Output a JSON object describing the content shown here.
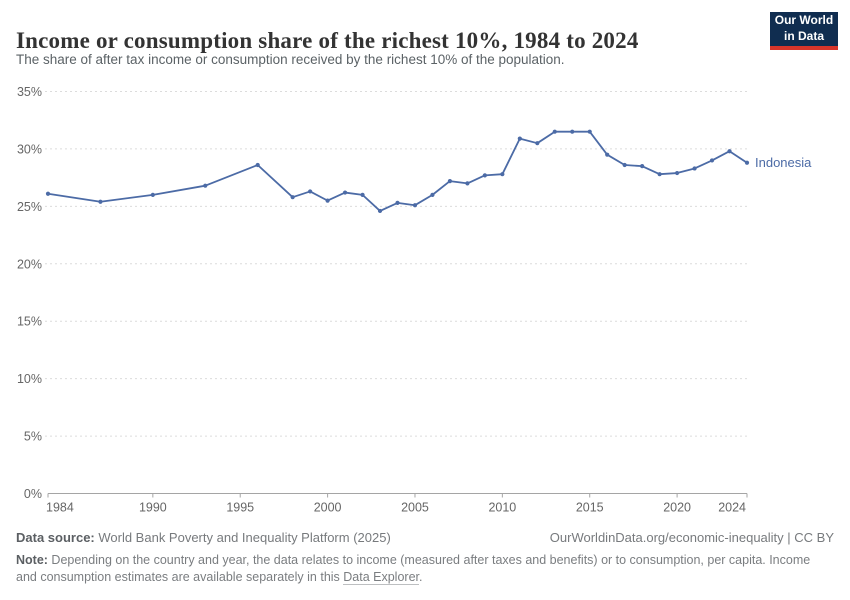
{
  "header": {
    "title": "Income or consumption share of the richest 10%, 1984 to 2024",
    "subtitle": "The share of after tax income or consumption received by the richest 10% of the population.",
    "logo": {
      "line1": "Our World",
      "line2": "in Data"
    }
  },
  "chart_data": {
    "type": "line",
    "title": "Income or consumption share of the richest 10%, 1984 to 2024",
    "xlabel": "",
    "ylabel": "",
    "xlim": [
      1984,
      2024
    ],
    "ylim": [
      0,
      35
    ],
    "grid": true,
    "y_ticks": [
      0,
      5,
      10,
      15,
      20,
      25,
      30,
      35
    ],
    "y_tick_suffix": "%",
    "x_ticks": [
      1984,
      1990,
      1995,
      2000,
      2005,
      2010,
      2015,
      2020,
      2024
    ],
    "legend_position": "end-of-line-label",
    "series": [
      {
        "name": "Indonesia",
        "color": "#4c6ba6",
        "points": [
          [
            1984,
            26.1
          ],
          [
            1987,
            25.4
          ],
          [
            1990,
            26.0
          ],
          [
            1993,
            26.8
          ],
          [
            1996,
            28.6
          ],
          [
            1998,
            25.8
          ],
          [
            1999,
            26.3
          ],
          [
            2000,
            25.5
          ],
          [
            2001,
            26.2
          ],
          [
            2002,
            26.0
          ],
          [
            2003,
            24.6
          ],
          [
            2004,
            25.3
          ],
          [
            2005,
            25.1
          ],
          [
            2006,
            26.0
          ],
          [
            2007,
            27.2
          ],
          [
            2008,
            27.0
          ],
          [
            2009,
            27.7
          ],
          [
            2010,
            27.8
          ],
          [
            2011,
            30.9
          ],
          [
            2012,
            30.5
          ],
          [
            2013,
            31.5
          ],
          [
            2014,
            31.5
          ],
          [
            2015,
            31.5
          ],
          [
            2016,
            29.5
          ],
          [
            2017,
            28.6
          ],
          [
            2018,
            28.5
          ],
          [
            2019,
            27.8
          ],
          [
            2020,
            27.9
          ],
          [
            2021,
            28.3
          ],
          [
            2022,
            29.0
          ],
          [
            2023,
            29.8
          ],
          [
            2024,
            28.8
          ]
        ]
      }
    ],
    "colors": {
      "line": "#4c6ba6",
      "gridline": "#dcdcdc",
      "axis": "#a5a5a5",
      "tick_text": "#666666"
    }
  },
  "footer": {
    "datasource_label": "Data source:",
    "datasource_value": " World Bank Poverty and Inequality Platform (2025)",
    "rights": "OurWorldinData.org/economic-inequality | CC BY",
    "note_label": "Note:",
    "note_text": " Depending on the country and year, the data relates to income (measured after taxes and benefits) or to consumption, per capita. Income and consumption estimates are available separately in this ",
    "note_link": "Data Explorer",
    "note_after": "."
  }
}
